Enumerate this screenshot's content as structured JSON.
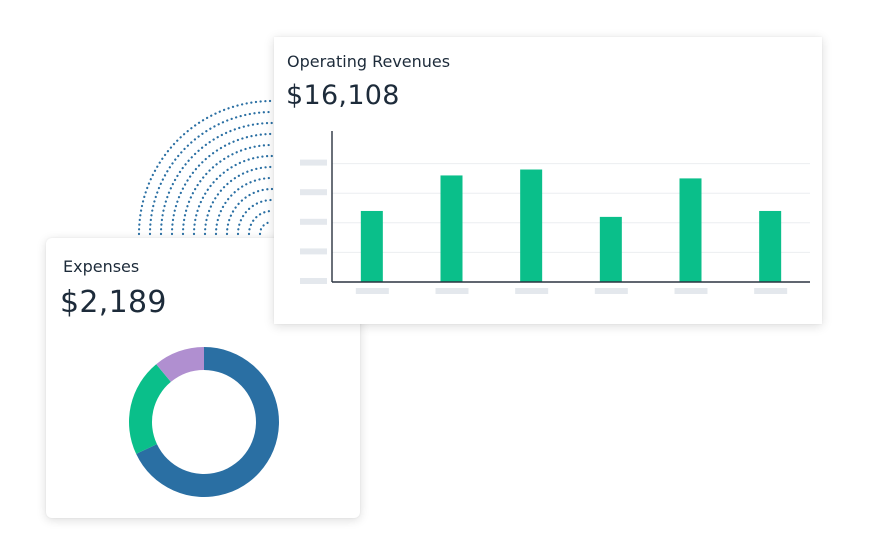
{
  "expenses": {
    "title": "Expenses",
    "amount": "$2,189"
  },
  "revenue": {
    "title": "Operating Revenues",
    "amount": "$16,108"
  },
  "colors": {
    "bar": "#0abf8a",
    "donut_blue": "#2a6fa3",
    "donut_green": "#0abf8a",
    "donut_purple": "#b08fd0",
    "arc_dots": "#2a6fa3",
    "placeholder": "#e4e8ed",
    "gridline": "#eceef1",
    "axis": "#2b3440"
  },
  "chart_data": [
    {
      "type": "bar",
      "title": "Operating Revenues",
      "categories": [
        "",
        "",
        "",
        "",
        "",
        ""
      ],
      "values": [
        2.4,
        3.6,
        3.8,
        2.2,
        3.5,
        2.4
      ],
      "ylim": [
        0,
        5
      ],
      "grid": true,
      "legend": "none"
    },
    {
      "type": "pie",
      "title": "Expenses",
      "labels": [
        "",
        "",
        ""
      ],
      "values": [
        68,
        21,
        11
      ],
      "donut": true
    }
  ]
}
